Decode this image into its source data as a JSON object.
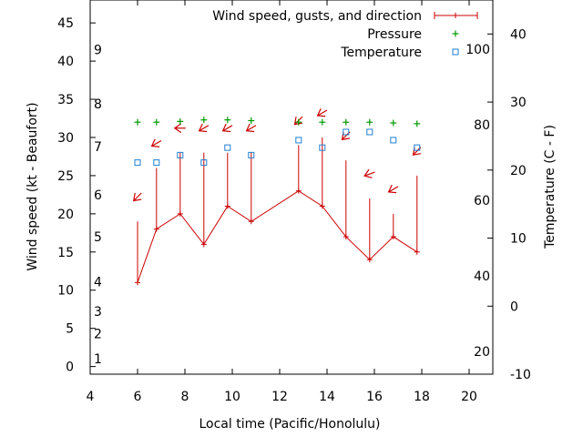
{
  "chart_data": {
    "type": "line",
    "xlabel": "Local time (Pacific/Honolulu)",
    "ylabel": "Wind speed (kt - Beaufort)",
    "y2label": "Temperature (C - F)",
    "xlim": [
      4,
      21
    ],
    "ylim": [
      -1,
      48
    ],
    "x_ticks": [
      "4",
      "6",
      "8",
      "10",
      "12",
      "14",
      "16",
      "18",
      "20"
    ],
    "y_ticks": [
      "0",
      "5",
      "10",
      "15",
      "20",
      "25",
      "30",
      "35",
      "40",
      "45"
    ],
    "beaufort_labels": [
      {
        "label": "1",
        "value": 1
      },
      {
        "label": "2",
        "value": 4.3
      },
      {
        "label": "3",
        "value": 7.2
      },
      {
        "label": "4",
        "value": 11.1
      },
      {
        "label": "5",
        "value": 17
      },
      {
        "label": "6",
        "value": 22.5
      },
      {
        "label": "7",
        "value": 28.8
      },
      {
        "label": "8",
        "value": 34.4
      },
      {
        "label": "9",
        "value": 41.5
      }
    ],
    "temp_c_ticks": [
      "-10",
      "0",
      "10",
      "20",
      "30",
      "40"
    ],
    "temp_c_range": [
      -10,
      45
    ],
    "temp_f_labels": [
      {
        "label": "20",
        "value": -6.67
      },
      {
        "label": "40",
        "value": 4.44
      },
      {
        "label": "60",
        "value": 15.56
      },
      {
        "label": "80",
        "value": 26.67
      },
      {
        "label": "100",
        "value": 37.78
      }
    ],
    "legend": {
      "position": "top-right",
      "entries": [
        "Wind speed, gusts, and direction",
        "Pressure",
        "Temperature"
      ]
    },
    "series": [
      {
        "name": "Wind speed, gusts, and direction",
        "color": "#cc0000",
        "x": [
          6,
          6.8,
          7.8,
          8.8,
          9.8,
          10.8,
          12.8,
          13.8,
          14.8,
          15.8,
          16.8,
          17.8
        ],
        "speed": [
          11,
          18,
          20,
          16,
          21,
          19,
          23,
          21,
          17,
          14,
          17,
          15
        ],
        "gust": [
          19,
          26,
          28,
          28,
          28,
          28,
          29,
          30,
          27,
          22,
          20,
          25
        ],
        "direction_deg": [
          45,
          60,
          90,
          60,
          60,
          60,
          45,
          60,
          45,
          70,
          60,
          45
        ]
      },
      {
        "name": "Pressure",
        "color": "#009900",
        "x": [
          6,
          6.8,
          7.8,
          8.8,
          9.8,
          10.8,
          12.8,
          13.8,
          14.8,
          15.8,
          16.8,
          17.8
        ],
        "values": [
          32,
          32,
          32.1,
          32.3,
          32.3,
          32.2,
          32,
          32,
          32,
          32,
          31.9,
          31.8
        ]
      },
      {
        "name": "Temperature",
        "color": "#1f7fcf",
        "x": [
          6,
          6.8,
          7.8,
          8.8,
          9.8,
          10.8,
          12.8,
          13.8,
          14.8,
          15.8,
          16.8,
          17.8
        ],
        "values_c": [
          21.1,
          21.1,
          22.2,
          21.1,
          23.3,
          22.2,
          24.4,
          23.3,
          25.6,
          25.6,
          24.4,
          23.3
        ]
      }
    ]
  }
}
